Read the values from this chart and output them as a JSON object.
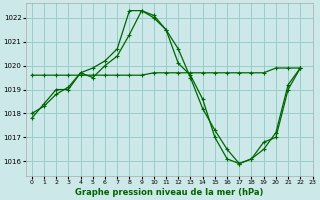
{
  "xlabel": "Graphe pression niveau de la mer (hPa)",
  "bg_color": "#cce8e8",
  "grid_color": "#99cccc",
  "line_color": "#006600",
  "xlim": [
    -0.5,
    23
  ],
  "ylim": [
    1015.4,
    1022.6
  ],
  "yticks": [
    1016,
    1017,
    1018,
    1019,
    1020,
    1021,
    1022
  ],
  "xticks": [
    0,
    1,
    2,
    3,
    4,
    5,
    6,
    7,
    8,
    9,
    10,
    11,
    12,
    13,
    14,
    15,
    16,
    17,
    18,
    19,
    20,
    21,
    22,
    23
  ],
  "series1_x": [
    0,
    1,
    2,
    3,
    4,
    5,
    6,
    7,
    8,
    9,
    10,
    11,
    12,
    13,
    14,
    15,
    16,
    17,
    18,
    19,
    20,
    21,
    22
  ],
  "series1_y": [
    1017.8,
    1018.4,
    1019.0,
    1019.0,
    1019.7,
    1019.9,
    1020.2,
    1020.7,
    1022.3,
    1022.3,
    1022.0,
    1021.5,
    1020.1,
    1019.6,
    1018.6,
    1017.0,
    1016.1,
    1015.9,
    1016.1,
    1016.8,
    1017.0,
    1019.0,
    1019.9
  ],
  "series2_x": [
    0,
    1,
    2,
    3,
    4,
    5,
    6,
    7,
    8,
    9,
    10,
    11,
    12,
    13,
    14,
    15,
    16,
    17,
    18,
    19,
    20,
    21,
    22
  ],
  "series2_y": [
    1019.6,
    1019.6,
    1019.6,
    1019.6,
    1019.6,
    1019.6,
    1019.6,
    1019.6,
    1019.6,
    1019.6,
    1019.7,
    1019.7,
    1019.7,
    1019.7,
    1019.7,
    1019.7,
    1019.7,
    1019.7,
    1019.7,
    1019.7,
    1019.9,
    1019.9,
    1019.9
  ],
  "series3_x": [
    0,
    1,
    2,
    3,
    4,
    5,
    6,
    7,
    8,
    9,
    10,
    11,
    12,
    13,
    14,
    15,
    16,
    17,
    18,
    19,
    20,
    21,
    22
  ],
  "series3_y": [
    1018.0,
    1018.3,
    1018.8,
    1019.1,
    1019.7,
    1019.5,
    1020.0,
    1020.4,
    1021.3,
    1022.3,
    1022.1,
    1021.5,
    1020.7,
    1019.5,
    1018.2,
    1017.3,
    1016.5,
    1015.9,
    1016.1,
    1016.5,
    1017.2,
    1019.2,
    1019.9
  ]
}
